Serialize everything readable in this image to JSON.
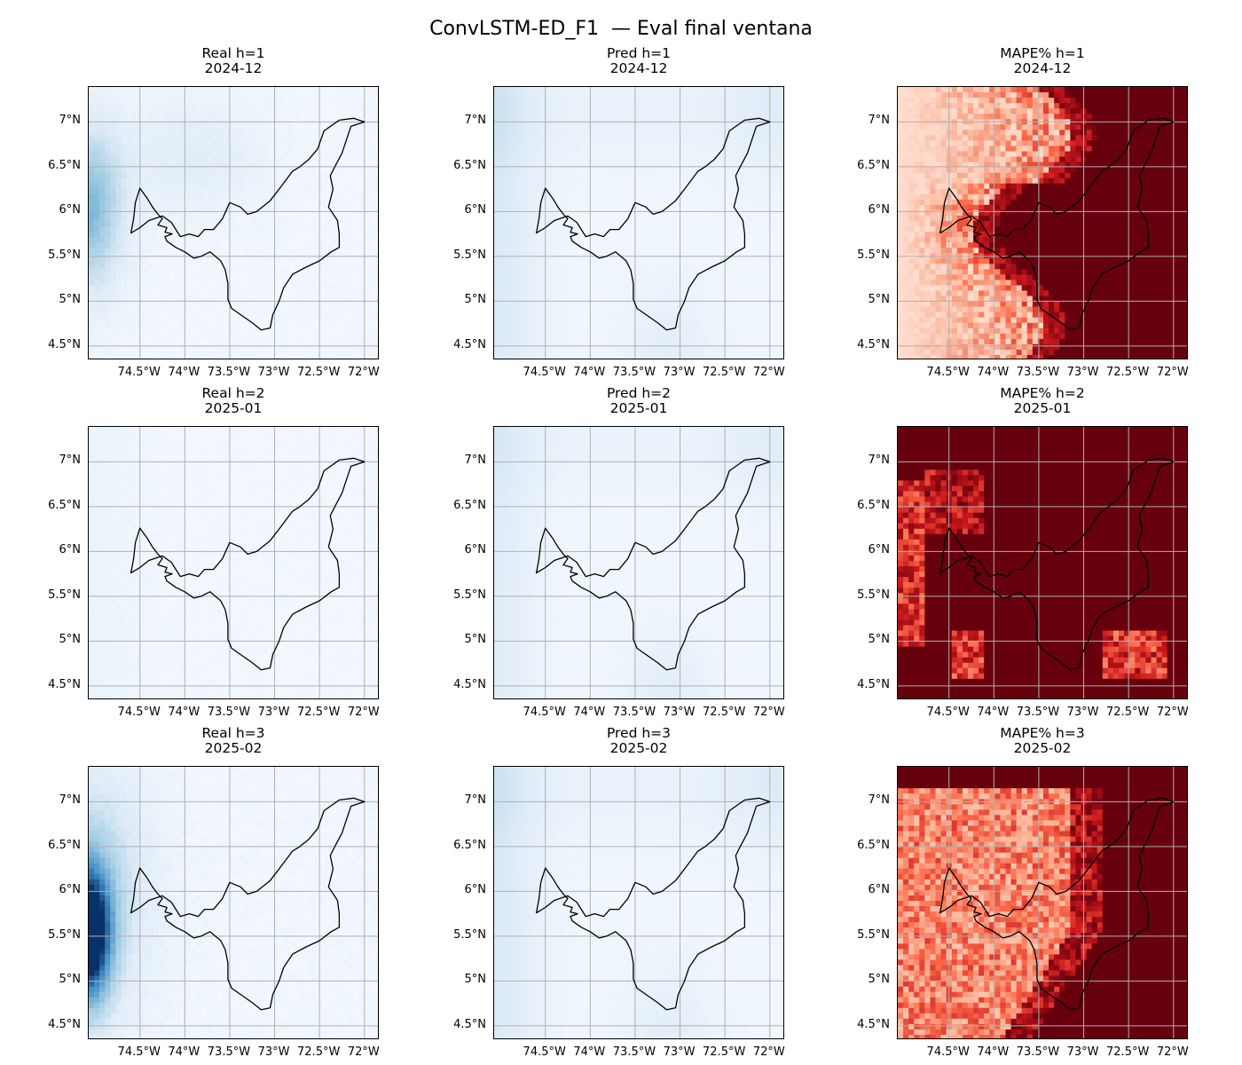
{
  "figure": {
    "title": "ConvLSTM-ED_F1  — Eval final ventana"
  },
  "axes": {
    "lon_ticks": [
      "74.5°W",
      "74°W",
      "73.5°W",
      "73°W",
      "72.5°W",
      "72°W"
    ],
    "lon_values": [
      -74.5,
      -74.0,
      -73.5,
      -73.0,
      -72.5,
      -72.0
    ],
    "lat_ticks": [
      "7°N",
      "6.5°N",
      "6°N",
      "5.5°N",
      "5°N",
      "4.5°N"
    ],
    "lat_values": [
      7.0,
      6.5,
      6.0,
      5.5,
      5.0,
      4.5
    ],
    "lon_range": [
      -75.07,
      -71.83
    ],
    "lat_range": [
      4.34,
      7.39
    ],
    "grid": true
  },
  "colors": {
    "real_pred_cmap": "Blues",
    "mape_cmap": "Reds",
    "blues_light": "#f0f6fc",
    "blues_dark": "#08306b",
    "reds_light": "#fff5f0",
    "reds_dark": "#67000d",
    "gridline": "#b0b0b0",
    "boundary": "#000000"
  },
  "panels": [
    {
      "id": "r1c1",
      "kind": "real",
      "title": "Real h=1",
      "date": "2024-12"
    },
    {
      "id": "r1c2",
      "kind": "pred",
      "title": "Pred h=1",
      "date": "2024-12"
    },
    {
      "id": "r1c3",
      "kind": "mape",
      "title": "MAPE% h=1",
      "date": "2024-12"
    },
    {
      "id": "r2c1",
      "kind": "real",
      "title": "Real h=2",
      "date": "2025-01"
    },
    {
      "id": "r2c2",
      "kind": "pred",
      "title": "Pred h=2",
      "date": "2025-01"
    },
    {
      "id": "r2c3",
      "kind": "mape",
      "title": "MAPE% h=2",
      "date": "2025-01"
    },
    {
      "id": "r3c1",
      "kind": "real",
      "title": "Real h=3",
      "date": "2025-02"
    },
    {
      "id": "r3c2",
      "kind": "pred",
      "title": "Pred h=3",
      "date": "2025-02"
    },
    {
      "id": "r3c3",
      "kind": "mape",
      "title": "MAPE% h=3",
      "date": "2025-02"
    }
  ],
  "boundary_lonlat": [
    [
      -74.6,
      5.76
    ],
    [
      -74.57,
      5.92
    ],
    [
      -74.55,
      6.1
    ],
    [
      -74.5,
      6.26
    ],
    [
      -74.42,
      6.15
    ],
    [
      -74.36,
      6.05
    ],
    [
      -74.3,
      5.97
    ],
    [
      -74.25,
      5.92
    ],
    [
      -74.3,
      5.85
    ],
    [
      -74.2,
      5.82
    ],
    [
      -74.22,
      5.77
    ],
    [
      -74.14,
      5.75
    ],
    [
      -74.22,
      5.72
    ],
    [
      -74.2,
      5.67
    ],
    [
      -74.1,
      5.6
    ],
    [
      -74.0,
      5.55
    ],
    [
      -73.9,
      5.48
    ],
    [
      -73.82,
      5.5
    ],
    [
      -73.72,
      5.55
    ],
    [
      -73.6,
      5.45
    ],
    [
      -73.55,
      5.35
    ],
    [
      -73.52,
      5.2
    ],
    [
      -73.52,
      5.02
    ],
    [
      -73.48,
      4.92
    ],
    [
      -73.38,
      4.85
    ],
    [
      -73.25,
      4.76
    ],
    [
      -73.15,
      4.68
    ],
    [
      -73.05,
      4.7
    ],
    [
      -73.02,
      4.85
    ],
    [
      -72.95,
      5.0
    ],
    [
      -72.9,
      5.15
    ],
    [
      -72.8,
      5.3
    ],
    [
      -72.65,
      5.38
    ],
    [
      -72.5,
      5.45
    ],
    [
      -72.37,
      5.55
    ],
    [
      -72.28,
      5.6
    ],
    [
      -72.28,
      5.75
    ],
    [
      -72.3,
      5.9
    ],
    [
      -72.4,
      6.05
    ],
    [
      -72.35,
      6.25
    ],
    [
      -72.38,
      6.4
    ],
    [
      -72.33,
      6.5
    ],
    [
      -72.25,
      6.65
    ],
    [
      -72.2,
      6.8
    ],
    [
      -72.15,
      6.95
    ],
    [
      -72.0,
      7.0
    ],
    [
      -72.12,
      7.04
    ],
    [
      -72.28,
      7.02
    ],
    [
      -72.45,
      6.9
    ],
    [
      -72.52,
      6.7
    ],
    [
      -72.62,
      6.58
    ],
    [
      -72.72,
      6.5
    ],
    [
      -72.8,
      6.45
    ],
    [
      -72.95,
      6.25
    ],
    [
      -73.05,
      6.12
    ],
    [
      -73.2,
      6.0
    ],
    [
      -73.3,
      5.97
    ],
    [
      -73.38,
      6.05
    ],
    [
      -73.5,
      6.1
    ],
    [
      -73.58,
      5.92
    ],
    [
      -73.68,
      5.8
    ],
    [
      -73.78,
      5.8
    ],
    [
      -73.85,
      5.72
    ],
    [
      -73.95,
      5.75
    ],
    [
      -74.05,
      5.72
    ],
    [
      -74.15,
      5.88
    ],
    [
      -74.25,
      5.95
    ],
    [
      -74.4,
      5.9
    ],
    [
      -74.5,
      5.82
    ],
    [
      -74.6,
      5.76
    ]
  ]
}
